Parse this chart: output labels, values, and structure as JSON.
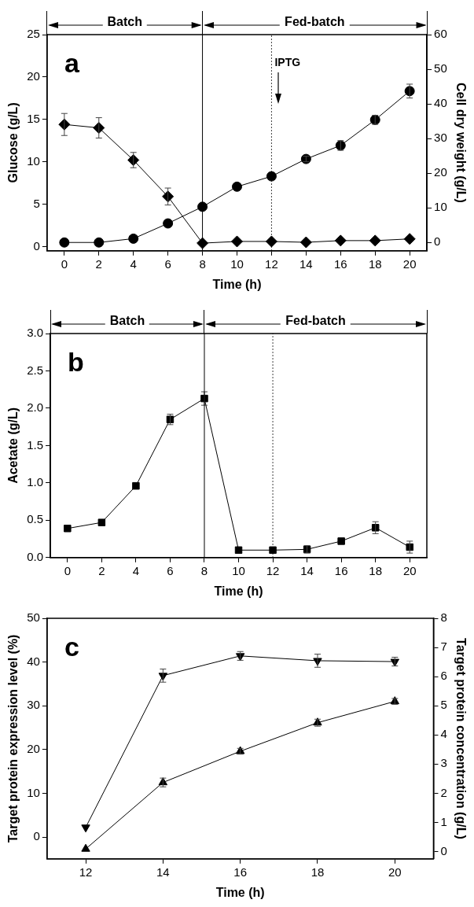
{
  "chart_data": [
    {
      "type": "line",
      "title": "a",
      "xlabel": "Time (h)",
      "ylabel": "Glucose (g/L)",
      "y2label": "Cell dry weight (g/L)",
      "x": [
        0,
        2,
        4,
        6,
        8,
        10,
        12,
        14,
        16,
        18,
        20
      ],
      "series": [
        {
          "color": "#000000",
          "marker": "diamond",
          "values": [
            14.4,
            14.0,
            10.2,
            5.9,
            0.4,
            0.6,
            0.6,
            0.5,
            0.7,
            0.7,
            0.9
          ],
          "errors": [
            1.3,
            1.2,
            0.9,
            1.0,
            null,
            null,
            null,
            null,
            null,
            null,
            null
          ]
        },
        {
          "color": "#000000",
          "marker": "circle",
          "axis": "y2",
          "values": [
            0,
            0,
            1.1,
            5.5,
            10.3,
            16.1,
            19.1,
            24.1,
            28.0,
            35.4,
            43.7
          ],
          "errors": [
            null,
            null,
            null,
            null,
            null,
            null,
            null,
            0.8,
            1.4,
            1.3,
            2.0
          ]
        }
      ],
      "xlim": [
        -1,
        21
      ],
      "xticks": [
        0,
        2,
        4,
        6,
        8,
        10,
        12,
        14,
        16,
        18,
        20
      ],
      "ylim": [
        -0.5,
        25
      ],
      "yticks": [
        0,
        5,
        10,
        15,
        20,
        25
      ],
      "y2lim": [
        -2.4,
        60
      ],
      "y2ticks": [
        0,
        10,
        20,
        30,
        40,
        50,
        60
      ],
      "ref_lines": [
        {
          "axis": "x",
          "value": 8,
          "line_style": "solid"
        },
        {
          "axis": "x",
          "value": 12,
          "line_style": "dotted",
          "label": "IPTG"
        }
      ],
      "annotations": [
        "Batch",
        "Fed-batch"
      ],
      "grid": false,
      "legend": false
    },
    {
      "type": "line",
      "title": "b",
      "xlabel": "Time (h)",
      "ylabel": "Acetate (g/L)",
      "x": [
        0,
        2,
        4,
        6,
        8,
        10,
        12,
        14,
        16,
        18,
        20
      ],
      "series": [
        {
          "color": "#000000",
          "marker": "square",
          "values": [
            0.39,
            0.47,
            0.96,
            1.85,
            2.13,
            0.1,
            0.1,
            0.11,
            0.22,
            0.4,
            0.14
          ],
          "errors": [
            null,
            null,
            null,
            0.07,
            0.09,
            null,
            null,
            0.05,
            null,
            0.08,
            0.08
          ]
        }
      ],
      "xlim": [
        -1,
        21
      ],
      "xticks": [
        0,
        2,
        4,
        6,
        8,
        10,
        12,
        14,
        16,
        18,
        20
      ],
      "ylim": [
        0,
        3
      ],
      "yticks": [
        {
          "value": 0,
          "label": "0.0"
        },
        0.5,
        {
          "value": 1,
          "label": "1.0"
        },
        1.5,
        {
          "value": 2,
          "label": "2.0"
        },
        2.5,
        {
          "value": 3,
          "label": "3.0"
        }
      ],
      "ref_lines": [
        {
          "axis": "x",
          "value": 8,
          "line_style": "solid"
        },
        {
          "axis": "x",
          "value": 12,
          "line_style": "dotted"
        }
      ],
      "annotations": [
        "Batch",
        "Fed-batch"
      ],
      "grid": false,
      "legend": false
    },
    {
      "type": "line",
      "title": "c",
      "xlabel": "Time (h)",
      "ylabel": "Target protein expression level (%)",
      "y2label": "Target protein concentration (g/L)",
      "x": [
        12,
        14,
        16,
        18,
        20
      ],
      "series": [
        {
          "color": "#000000",
          "marker": "triangle-down",
          "values": [
            2.2,
            36.9,
            41.4,
            40.3,
            40.1
          ],
          "errors": [
            null,
            1.5,
            1.0,
            1.5,
            1.0
          ]
        },
        {
          "color": "#000000",
          "marker": "triangle",
          "axis": "y2",
          "values": [
            0.09,
            2.37,
            3.44,
            4.42,
            5.15
          ],
          "errors": [
            null,
            0.15,
            0.1,
            0.12,
            0.1
          ]
        }
      ],
      "xlim": [
        11,
        21
      ],
      "xticks": [
        12,
        14,
        16,
        18,
        20
      ],
      "ylim": [
        -5,
        50
      ],
      "yticks": [
        0,
        10,
        20,
        30,
        40,
        50
      ],
      "y2lim": [
        -0.25,
        8
      ],
      "y2ticks": [
        0,
        1,
        2,
        3,
        4,
        5,
        6,
        7,
        8
      ],
      "grid": false,
      "legend": false
    }
  ]
}
